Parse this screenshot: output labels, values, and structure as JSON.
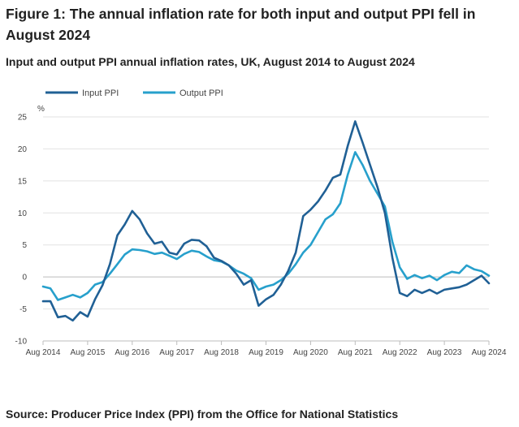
{
  "title": "Figure 1: The annual inflation rate for both input and output PPI fell in August 2024",
  "subtitle": "Input and output PPI annual inflation rates, UK, August 2014 to August 2024",
  "source": "Source: Producer Price Index (PPI) from the Office for National Statistics",
  "chart_data": {
    "type": "line",
    "title": "Input and output PPI annual inflation rates, UK, August 2014 to August 2024",
    "ylabel": "%",
    "xlabel": "",
    "ylim": [
      -10,
      25
    ],
    "yticks": [
      -10,
      -5,
      0,
      5,
      10,
      15,
      20,
      25
    ],
    "xticks": [
      "Aug 2014",
      "Aug 2015",
      "Aug 2016",
      "Aug 2017",
      "Aug 2018",
      "Aug 2019",
      "Aug 2020",
      "Aug 2021",
      "Aug 2022",
      "Aug 2023",
      "Aug 2024"
    ],
    "grid": true,
    "legend": "top-left",
    "x_unit": "months since Aug 2014",
    "series": [
      {
        "name": "Input PPI",
        "color": "#206095",
        "x": [
          0,
          2,
          4,
          6,
          8,
          10,
          12,
          14,
          16,
          18,
          20,
          22,
          24,
          26,
          28,
          30,
          32,
          34,
          36,
          38,
          40,
          42,
          44,
          46,
          48,
          50,
          52,
          54,
          56,
          58,
          60,
          62,
          64,
          66,
          68,
          70,
          72,
          74,
          76,
          78,
          80,
          82,
          84,
          86,
          88,
          90,
          92,
          94,
          96,
          98,
          100,
          102,
          104,
          106,
          108,
          110,
          112,
          114,
          116,
          118,
          120
        ],
        "y": [
          -3.8,
          -3.8,
          -6.3,
          -6.1,
          -6.8,
          -5.5,
          -6.2,
          -3.5,
          -1.3,
          2.0,
          6.5,
          8.2,
          10.3,
          9.0,
          6.8,
          5.2,
          5.5,
          3.8,
          3.5,
          5.2,
          5.8,
          5.7,
          4.8,
          3.0,
          2.5,
          1.8,
          0.5,
          -1.2,
          -0.5,
          -4.5,
          -3.5,
          -2.8,
          -1.2,
          1.0,
          3.8,
          9.5,
          10.5,
          11.8,
          13.5,
          15.5,
          16.0,
          20.5,
          24.3,
          21.0,
          17.5,
          14.0,
          10.0,
          3.0,
          -2.5,
          -3.0,
          -2.0,
          -2.5,
          -2.0,
          -2.6,
          -2.0,
          -1.8,
          -1.6,
          -1.2,
          -0.5,
          0.2,
          -1.0
        ]
      },
      {
        "name": "Output PPI",
        "color": "#27a0cc",
        "x": [
          0,
          2,
          4,
          6,
          8,
          10,
          12,
          14,
          16,
          18,
          20,
          22,
          24,
          26,
          28,
          30,
          32,
          34,
          36,
          38,
          40,
          42,
          44,
          46,
          48,
          50,
          52,
          54,
          56,
          58,
          60,
          62,
          64,
          66,
          68,
          70,
          72,
          74,
          76,
          78,
          80,
          82,
          84,
          86,
          88,
          90,
          92,
          94,
          96,
          98,
          100,
          102,
          104,
          106,
          108,
          110,
          112,
          114,
          116,
          118,
          120
        ],
        "y": [
          -1.5,
          -1.8,
          -3.6,
          -3.2,
          -2.8,
          -3.2,
          -2.5,
          -1.2,
          -0.8,
          0.5,
          2.0,
          3.5,
          4.3,
          4.2,
          4.0,
          3.6,
          3.8,
          3.3,
          2.8,
          3.6,
          4.1,
          3.9,
          3.2,
          2.6,
          2.4,
          1.8,
          1.0,
          0.5,
          -0.2,
          -2.0,
          -1.5,
          -1.2,
          -0.5,
          0.5,
          2.0,
          3.8,
          5.0,
          7.0,
          9.0,
          9.8,
          11.5,
          16.0,
          19.5,
          17.5,
          15.0,
          13.0,
          11.0,
          5.5,
          1.5,
          -0.3,
          0.3,
          -0.2,
          0.2,
          -0.5,
          0.3,
          0.8,
          0.6,
          1.8,
          1.2,
          0.9,
          0.2
        ]
      }
    ]
  }
}
